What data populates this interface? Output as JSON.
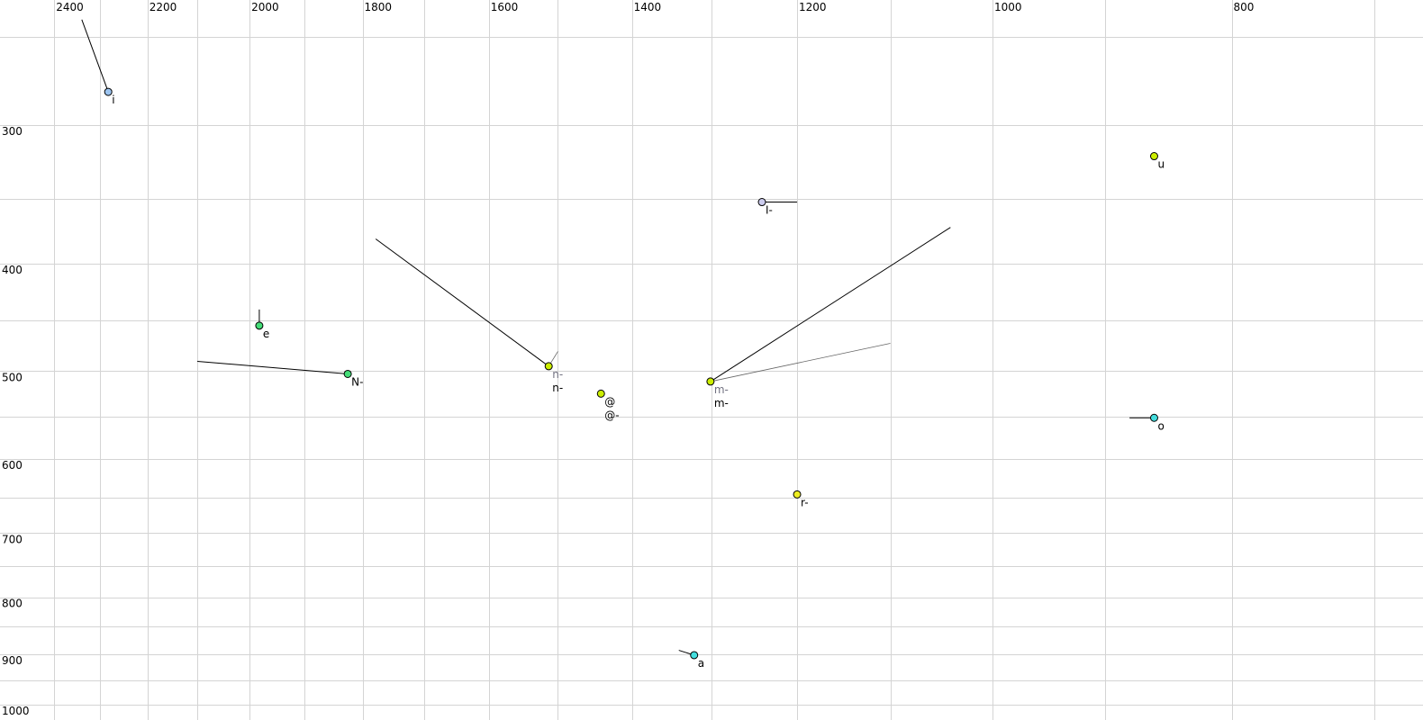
{
  "chart_data": {
    "type": "scatter",
    "title": "",
    "xlabel": "",
    "ylabel": "",
    "x_scale": "log",
    "y_scale": "log",
    "x_reversed": true,
    "xlim": [
      2400,
      700
    ],
    "ylim": [
      250,
      1000
    ],
    "grid": true,
    "x_ticks": [
      "2400",
      "2200",
      "2000",
      "1800",
      "1600",
      "1400",
      "1200",
      "1000",
      "800"
    ],
    "y_ticks": [
      "300",
      "400",
      "500",
      "600",
      "700",
      "800",
      "900",
      "1000"
    ],
    "points": [
      {
        "label": "i",
        "f2": 2282,
        "f1": 280,
        "color": "#9cc4f0",
        "trail": [
          [
            2339,
            241
          ]
        ]
      },
      {
        "label": "u",
        "f2": 860,
        "f1": 320,
        "color": "#ccee00",
        "trail": []
      },
      {
        "label": "I-",
        "f2": 1240,
        "f1": 352,
        "color": "#ccccee",
        "trail": [
          [
            1200,
            352
          ]
        ]
      },
      {
        "label": "e",
        "f2": 1982,
        "f1": 455,
        "color": "#44dd77",
        "trail": [
          [
            1982,
            440
          ]
        ]
      },
      {
        "label": "N-",
        "f2": 1825,
        "f1": 503,
        "color": "#44dd77",
        "trail": [
          [
            2100,
            490
          ]
        ]
      },
      {
        "label": "n-",
        "f2": 1513,
        "f1": 495,
        "color": "#ccee00",
        "trail": [
          [
            1778,
            380
          ]
        ],
        "secondary_label": "n-",
        "secondary_trail": [
          [
            1500,
            480
          ]
        ]
      },
      {
        "label": "@-",
        "f2": 1441,
        "f1": 524,
        "color": "#ccee00",
        "trail": [],
        "secondary_label": "@"
      },
      {
        "label": "m-",
        "f2": 1301,
        "f1": 511,
        "color": "#ccee00",
        "trail": [
          [
            1040,
            371
          ]
        ],
        "secondary_label": "m-",
        "secondary_trail": [
          [
            1100,
            472
          ]
        ]
      },
      {
        "label": "o",
        "f2": 860,
        "f1": 551,
        "color": "#44dddd",
        "trail": [
          [
            880,
            551
          ]
        ]
      },
      {
        "label": "r-",
        "f2": 1200,
        "f1": 646,
        "color": "#eeee22",
        "trail": [
          [
            1200,
            641
          ]
        ]
      },
      {
        "label": "a",
        "f2": 1321,
        "f1": 902,
        "color": "#44dddd",
        "trail": [
          [
            1340,
            893
          ]
        ]
      }
    ]
  }
}
